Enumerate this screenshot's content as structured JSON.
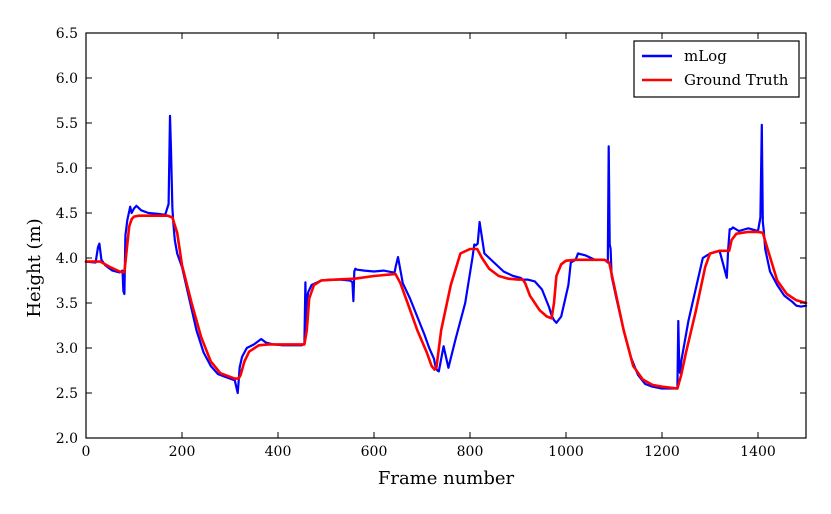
{
  "chart_data": {
    "type": "line",
    "title": "",
    "xlabel": "Frame number",
    "ylabel": "Height (m)",
    "xlim": [
      0,
      1500
    ],
    "ylim": [
      2.0,
      6.5
    ],
    "x_ticks": [
      0,
      200,
      400,
      600,
      800,
      1000,
      1200,
      1400
    ],
    "x_tick_labels": [
      "0",
      "200",
      "400",
      "600",
      "800",
      "1000",
      "1200",
      "1400"
    ],
    "y_ticks": [
      2.0,
      2.5,
      3.0,
      3.5,
      4.0,
      4.5,
      5.0,
      5.5,
      6.0,
      6.5
    ],
    "y_tick_labels": [
      "2.0",
      "2.5",
      "3.0",
      "3.5",
      "4.0",
      "4.5",
      "5.0",
      "5.5",
      "6.0",
      "6.5"
    ],
    "grid": false,
    "legend_position": "top-right",
    "series": [
      {
        "name": "mLog",
        "color": "#0000ff",
        "x": [
          0,
          20,
          25,
          28,
          32,
          40,
          55,
          70,
          76,
          78,
          80,
          82,
          86,
          92,
          95,
          100,
          105,
          115,
          130,
          150,
          165,
          172,
          175,
          177,
          180,
          182,
          185,
          190,
          200,
          215,
          230,
          245,
          260,
          275,
          290,
          300,
          310,
          316,
          318,
          320,
          325,
          335,
          350,
          365,
          375,
          390,
          410,
          430,
          450,
          455,
          457,
          459,
          461,
          463,
          470,
          490,
          510,
          530,
          550,
          555,
          557,
          559,
          561,
          565,
          580,
          600,
          620,
          640,
          643,
          645,
          650,
          660,
          675,
          690,
          705,
          715,
          725,
          727,
          729,
          732,
          735,
          745,
          755,
          770,
          790,
          805,
          809,
          812,
          816,
          820,
          830,
          850,
          870,
          890,
          905,
          910,
          920,
          935,
          950,
          965,
          970,
          975,
          980,
          990,
          1005,
          1010,
          1020,
          1025,
          1040,
          1060,
          1080,
          1085,
          1087,
          1089,
          1091,
          1093,
          1095,
          1105,
          1120,
          1135,
          1150,
          1165,
          1180,
          1200,
          1220,
          1232,
          1234,
          1236,
          1238,
          1240,
          1245,
          1255,
          1270,
          1285,
          1300,
          1320,
          1335,
          1338,
          1341,
          1344,
          1348,
          1360,
          1380,
          1400,
          1405,
          1408,
          1410,
          1412,
          1415,
          1425,
          1440,
          1455,
          1470,
          1480,
          1490,
          1500
        ],
        "y": [
          3.96,
          3.95,
          4.12,
          4.16,
          3.98,
          3.92,
          3.86,
          3.84,
          3.86,
          3.63,
          3.6,
          4.25,
          4.42,
          4.57,
          4.5,
          4.55,
          4.58,
          4.53,
          4.5,
          4.49,
          4.48,
          4.6,
          5.58,
          5.2,
          4.55,
          4.38,
          4.2,
          4.05,
          3.9,
          3.55,
          3.2,
          2.95,
          2.8,
          2.71,
          2.68,
          2.66,
          2.64,
          2.5,
          2.62,
          2.78,
          2.9,
          3.0,
          3.04,
          3.1,
          3.06,
          3.04,
          3.03,
          3.03,
          3.03,
          3.05,
          3.73,
          3.2,
          3.55,
          3.62,
          3.7,
          3.75,
          3.76,
          3.76,
          3.75,
          3.73,
          3.52,
          3.85,
          3.88,
          3.87,
          3.86,
          3.85,
          3.86,
          3.84,
          3.84,
          3.9,
          4.01,
          3.72,
          3.55,
          3.35,
          3.15,
          3.0,
          2.88,
          2.82,
          2.78,
          2.75,
          2.74,
          3.02,
          2.78,
          3.1,
          3.5,
          4.0,
          4.15,
          4.14,
          4.16,
          4.4,
          4.05,
          3.95,
          3.85,
          3.8,
          3.78,
          3.76,
          3.76,
          3.74,
          3.65,
          3.45,
          3.36,
          3.31,
          3.28,
          3.35,
          3.7,
          3.95,
          3.98,
          4.05,
          4.03,
          3.98,
          3.98,
          3.96,
          3.95,
          5.24,
          4.15,
          4.1,
          3.8,
          3.55,
          3.2,
          2.9,
          2.7,
          2.6,
          2.57,
          2.55,
          2.55,
          2.55,
          3.3,
          2.75,
          2.72,
          2.85,
          3.0,
          3.3,
          3.65,
          4.0,
          4.05,
          4.08,
          3.78,
          4.1,
          4.32,
          4.32,
          4.34,
          4.3,
          4.33,
          4.3,
          4.45,
          5.48,
          4.4,
          4.3,
          4.1,
          3.85,
          3.7,
          3.58,
          3.52,
          3.47,
          3.46,
          3.47
        ]
      },
      {
        "name": "Ground Truth",
        "color": "#ff0000",
        "x": [
          0,
          30,
          50,
          70,
          80,
          85,
          90,
          95,
          100,
          110,
          140,
          170,
          180,
          190,
          200,
          220,
          240,
          260,
          280,
          300,
          310,
          318,
          322,
          330,
          340,
          360,
          380,
          400,
          420,
          440,
          455,
          460,
          465,
          475,
          490,
          520,
          560,
          600,
          640,
          645,
          655,
          670,
          690,
          710,
          720,
          726,
          730,
          740,
          760,
          780,
          800,
          810,
          815,
          825,
          840,
          860,
          880,
          900,
          910,
          915,
          925,
          945,
          960,
          970,
          975,
          980,
          990,
          1000,
          1020,
          1060,
          1080,
          1090,
          1100,
          1120,
          1140,
          1160,
          1180,
          1200,
          1232,
          1240,
          1250,
          1270,
          1290,
          1300,
          1320,
          1340,
          1345,
          1355,
          1380,
          1400,
          1410,
          1420,
          1440,
          1460,
          1480,
          1500
        ],
        "y": [
          3.96,
          3.96,
          3.9,
          3.85,
          3.84,
          4.1,
          4.35,
          4.43,
          4.46,
          4.47,
          4.47,
          4.47,
          4.45,
          4.28,
          3.92,
          3.5,
          3.12,
          2.85,
          2.72,
          2.68,
          2.66,
          2.66,
          2.7,
          2.85,
          2.96,
          3.03,
          3.04,
          3.04,
          3.04,
          3.04,
          3.04,
          3.2,
          3.55,
          3.7,
          3.75,
          3.76,
          3.77,
          3.8,
          3.82,
          3.82,
          3.72,
          3.5,
          3.2,
          2.95,
          2.8,
          2.76,
          2.78,
          3.2,
          3.7,
          4.05,
          4.1,
          4.1,
          4.1,
          4.0,
          3.88,
          3.8,
          3.77,
          3.76,
          3.76,
          3.72,
          3.58,
          3.42,
          3.35,
          3.33,
          3.5,
          3.8,
          3.93,
          3.97,
          3.98,
          3.98,
          3.98,
          3.95,
          3.7,
          3.2,
          2.8,
          2.65,
          2.59,
          2.57,
          2.55,
          2.7,
          2.95,
          3.4,
          3.9,
          4.05,
          4.08,
          4.08,
          4.2,
          4.27,
          4.29,
          4.29,
          4.28,
          4.1,
          3.75,
          3.6,
          3.53,
          3.5
        ]
      }
    ]
  }
}
